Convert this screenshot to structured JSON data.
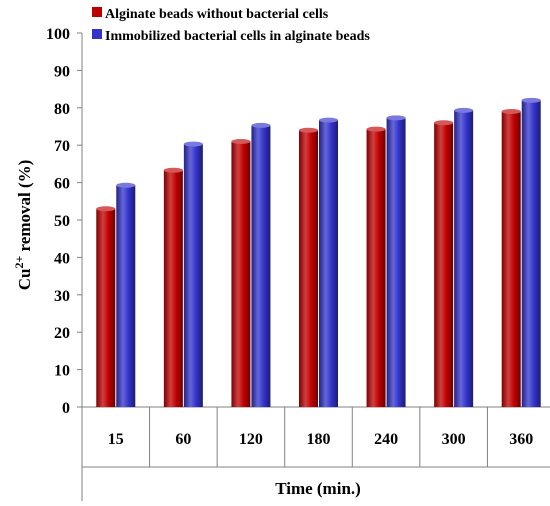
{
  "chart_data": {
    "type": "bar",
    "title": "",
    "xlabel": "Time (min.)",
    "ylabel": {
      "prefix": "Cu",
      "superscript": "2+",
      "suffix": " removal (%)"
    },
    "categories": [
      "15",
      "60",
      "120",
      "180",
      "240",
      "300",
      "360"
    ],
    "series": [
      {
        "name": "Alginate beads without bacterial cells",
        "color": "#C00000",
        "values": [
          53,
          63.3,
          71,
          74,
          74.3,
          76,
          79
        ]
      },
      {
        "name": "Immobilized bacterial cells in alginate beads",
        "color": "#3333CC",
        "values": [
          59.3,
          70.3,
          75.3,
          76.7,
          77.3,
          79.3,
          82
        ]
      }
    ],
    "ylim": [
      0,
      100
    ],
    "yticks": [
      "0",
      "10",
      "20",
      "30",
      "40",
      "50",
      "60",
      "70",
      "80",
      "90",
      "100"
    ],
    "grid": false,
    "legend_position": "top-left"
  }
}
